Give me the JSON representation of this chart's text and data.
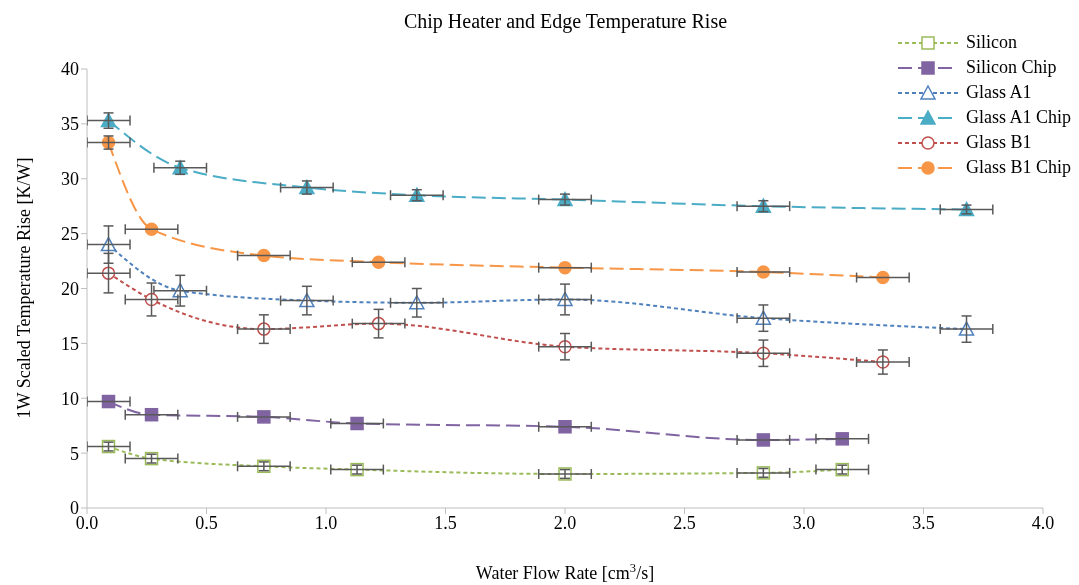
{
  "chart_data": {
    "type": "line",
    "title": "Chip Heater and Edge Temperature Rise",
    "xlabel": "Water Flow Rate [cm$^{3}$/s]",
    "ylabel": "1W Scaled Temperature Rise [K/W]",
    "xlim": [
      0,
      4
    ],
    "xticks": [
      {
        "value": 0,
        "label": "0.0"
      },
      0.5,
      {
        "value": 1,
        "label": "1.0"
      },
      1.5,
      {
        "value": 2,
        "label": "2.0"
      },
      2.5,
      {
        "value": 3,
        "label": "3.0"
      },
      3.5,
      {
        "value": 4,
        "label": "4.0"
      }
    ],
    "ylim": [
      0,
      40
    ],
    "yticks": [
      0,
      5,
      10,
      15,
      20,
      25,
      30,
      35,
      40
    ],
    "legend": "top right",
    "series": [
      {
        "name": "Silicon",
        "color": "#9bbb59",
        "marker": "square",
        "line_style": "dotted",
        "x": [
          0.09,
          0.27,
          0.74,
          1.13,
          2.0,
          2.83,
          3.16
        ],
        "values": [
          5.6,
          4.5,
          3.8,
          3.5,
          3.1,
          3.2,
          3.5
        ],
        "errors": [
          0.4,
          0.4,
          0.4,
          0.4,
          0.4,
          0.4,
          0.4
        ],
        "xerrors": [
          0.09,
          0.11,
          0.11,
          0.11,
          0.11,
          0.11,
          0.11
        ]
      },
      {
        "name": "Silicon Chip",
        "color": "#8064a2",
        "marker": "square",
        "line_style": "dashed",
        "x": [
          0.09,
          0.27,
          0.74,
          1.13,
          2.0,
          2.83,
          3.16
        ],
        "values": [
          9.7,
          8.5,
          8.3,
          7.7,
          7.4,
          6.2,
          6.3
        ],
        "xerrors": [
          0.09,
          0.11,
          0.11,
          0.11,
          0.11,
          0.11,
          0.11
        ]
      },
      {
        "name": "Glass A1",
        "color": "#4f81bd",
        "marker": "triangle",
        "line_style": "dotted",
        "x": [
          0.09,
          0.39,
          0.92,
          1.38,
          2.0,
          2.83,
          3.68
        ],
        "values": [
          24.0,
          19.8,
          18.9,
          18.7,
          19.0,
          17.3,
          16.3
        ],
        "errors": [
          1.7,
          1.4,
          1.3,
          1.3,
          1.4,
          1.2,
          1.2
        ],
        "xerrors": [
          0.09,
          0.11,
          0.11,
          0.11,
          0.11,
          0.11,
          0.11
        ]
      },
      {
        "name": "Glass A1 Chip",
        "color": "#4bacc6",
        "marker": "triangle",
        "line_style": "dashed",
        "x": [
          0.09,
          0.39,
          0.92,
          1.38,
          2.0,
          2.83,
          3.68
        ],
        "values": [
          35.3,
          31.0,
          29.2,
          28.5,
          28.1,
          27.5,
          27.2
        ],
        "errors": [
          0.7,
          0.6,
          0.6,
          0.5,
          0.5,
          0.5,
          0.4
        ],
        "xerrors": [
          0.09,
          0.11,
          0.11,
          0.11,
          0.11,
          0.11,
          0.11
        ]
      },
      {
        "name": "Glass B1",
        "color": "#c0504d",
        "marker": "circle",
        "line_style": "dotted",
        "x": [
          0.09,
          0.27,
          0.74,
          1.22,
          2.0,
          2.83,
          3.33
        ],
        "values": [
          21.4,
          19.0,
          16.3,
          16.8,
          14.7,
          14.1,
          13.3
        ],
        "errors": [
          1.8,
          1.5,
          1.3,
          1.3,
          1.2,
          1.2,
          1.1
        ],
        "xerrors": [
          0.09,
          0.11,
          0.11,
          0.11,
          0.11,
          0.11,
          0.11
        ]
      },
      {
        "name": "Glass B1 Chip",
        "color": "#f79646",
        "marker": "circle",
        "line_style": "dashed",
        "x": [
          0.09,
          0.27,
          0.74,
          1.22,
          2.0,
          2.83,
          3.33
        ],
        "values": [
          33.3,
          25.4,
          23.0,
          22.4,
          21.9,
          21.5,
          21.0
        ],
        "errors": [
          0.6,
          null,
          null,
          null,
          null,
          null,
          null
        ],
        "xerrors": [
          0.09,
          0.11,
          0.11,
          0.11,
          0.11,
          0.11,
          0.11
        ]
      }
    ]
  }
}
